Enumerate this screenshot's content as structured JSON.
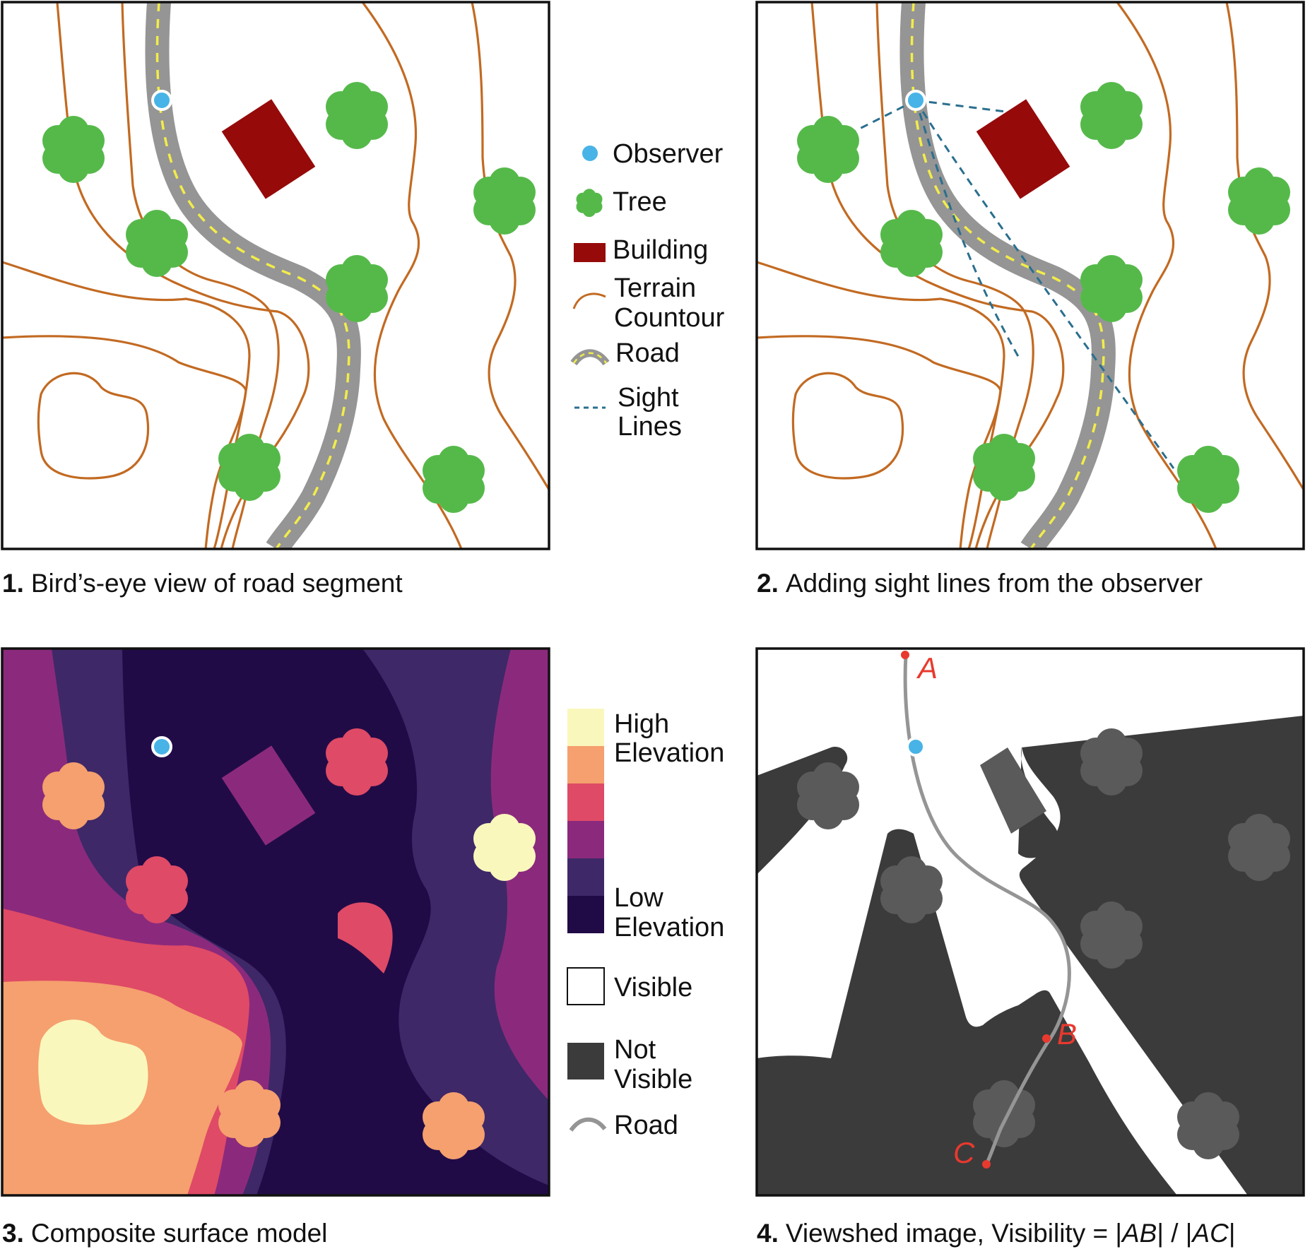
{
  "colors": {
    "observer": "#48b3e6",
    "tree": "#55b94a",
    "building": "#960a0a",
    "contour": "#c26a22",
    "road": "#959595",
    "road_center": "#f2ec4a",
    "sight_line": "#2b6f8e",
    "elev_high": "#faf7bd",
    "elev_5": "#f5a06e",
    "elev_4": "#df4a66",
    "elev_3": "#8b2a7c",
    "elev_2": "#3e2868",
    "elev_low": "#210b47",
    "visible": "#ffffff",
    "not_visible": "#3b3b3b",
    "not_visible_objects": "#5a5a5a",
    "point_marker": "#e8392e"
  },
  "panel1": {
    "num": "1.",
    "caption": "Bird’s-eye view of road segment"
  },
  "panel2": {
    "num": "2.",
    "caption": "Adding sight lines from the observer"
  },
  "panel3": {
    "num": "3.",
    "caption": "Composite surface model"
  },
  "panel4": {
    "num": "4.",
    "caption_prefix": "Viewshed image, Visibility = |",
    "caption_ab": "AB",
    "caption_mid": "| / |",
    "caption_ac": "AC",
    "caption_suffix": "|",
    "point_a": "A",
    "point_b": "B",
    "point_c": "C"
  },
  "legend_top": {
    "observer": "Observer",
    "tree": "Tree",
    "building": "Building",
    "terrain_1": "Terrain",
    "terrain_2": "Countour",
    "road": "Road",
    "sight_1": "Sight",
    "sight_2": "Lines"
  },
  "legend_bottom": {
    "high_1": "High",
    "high_2": "Elevation",
    "low_1": "Low",
    "low_2": "Elevation",
    "visible": "Visible",
    "not_visible_1": "Not",
    "not_visible_2": "Visible",
    "road": "Road"
  }
}
